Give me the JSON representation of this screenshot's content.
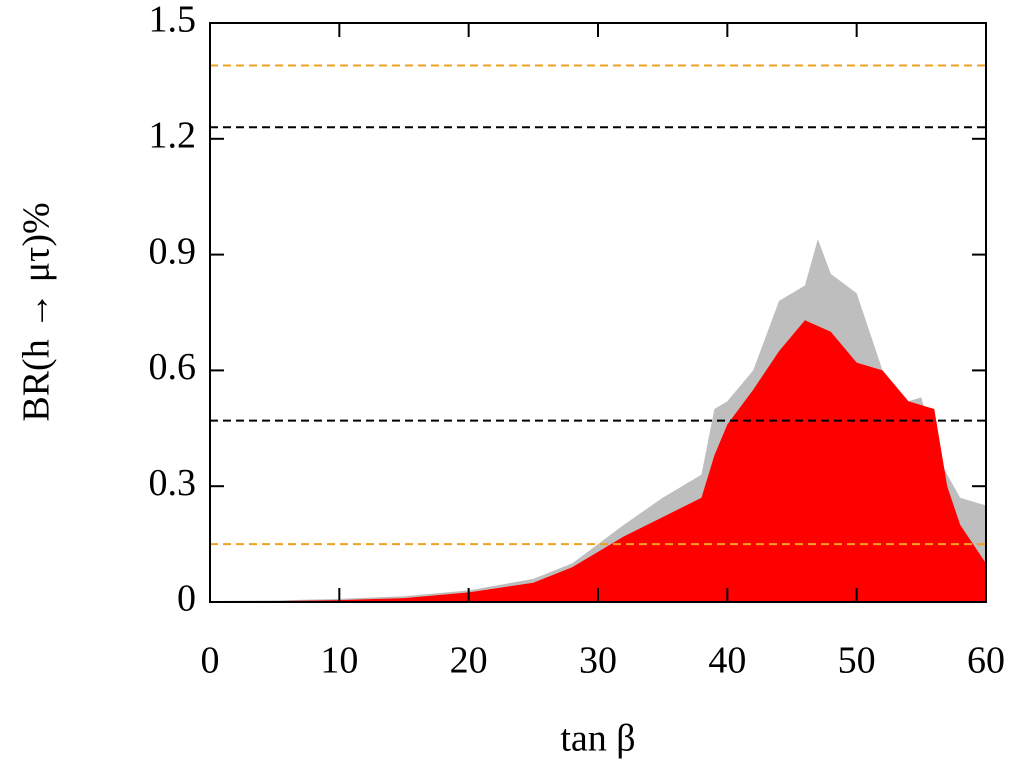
{
  "chart_data": {
    "type": "scatter",
    "xlabel": "tan β",
    "ylabel": "BR(h → μτ)%",
    "xlim": [
      0,
      60
    ],
    "ylim": [
      0,
      1.5
    ],
    "xticks": [
      0,
      10,
      20,
      30,
      40,
      50,
      60
    ],
    "yticks": [
      0,
      0.3,
      0.6,
      0.9,
      1.2,
      1.5
    ],
    "series": [
      {
        "color": "#bebebe",
        "style": "area",
        "x": [
          1,
          5,
          10,
          15,
          20,
          25,
          28,
          30,
          32,
          35,
          38,
          39,
          40,
          42,
          44,
          46,
          47,
          48,
          50,
          52,
          54,
          55,
          56,
          57,
          58,
          60
        ],
        "values": [
          0.003,
          0.004,
          0.008,
          0.015,
          0.03,
          0.06,
          0.1,
          0.15,
          0.2,
          0.27,
          0.33,
          0.5,
          0.52,
          0.6,
          0.78,
          0.82,
          0.94,
          0.85,
          0.8,
          0.6,
          0.52,
          0.53,
          0.4,
          0.33,
          0.27,
          0.25
        ]
      },
      {
        "color": "#ff0000",
        "style": "area",
        "x": [
          4,
          10,
          15,
          20,
          25,
          28,
          30,
          32,
          35,
          38,
          39,
          40,
          42,
          44,
          46,
          48,
          50,
          52,
          54,
          56,
          57,
          58,
          60
        ],
        "values": [
          0.002,
          0.005,
          0.01,
          0.025,
          0.05,
          0.09,
          0.13,
          0.17,
          0.22,
          0.27,
          0.38,
          0.46,
          0.55,
          0.65,
          0.73,
          0.7,
          0.62,
          0.6,
          0.52,
          0.5,
          0.3,
          0.2,
          0.1
        ]
      }
    ],
    "hlines": [
      {
        "value": 1.39,
        "color": "#f0a020"
      },
      {
        "value": 1.23,
        "color": "#000000"
      },
      {
        "value": 0.47,
        "color": "#000000"
      },
      {
        "value": 0.15,
        "color": "#f0a020"
      }
    ]
  }
}
